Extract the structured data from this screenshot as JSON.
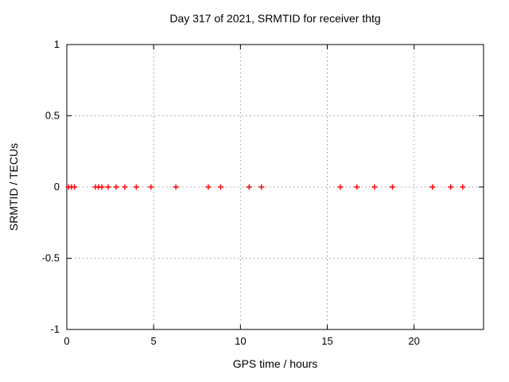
{
  "chart_data": {
    "type": "scatter",
    "title": "Day 317 of 2021, SRMTID for receiver thtg",
    "xlabel": "GPS time / hours",
    "ylabel": "SRMTID / TECUs",
    "xlim": [
      0,
      24
    ],
    "ylim": [
      -1,
      1
    ],
    "x_ticks": [
      0,
      5,
      10,
      15,
      20
    ],
    "x_tick_labels": [
      "0",
      "5",
      "10",
      "15",
      "20"
    ],
    "y_ticks": [
      -1,
      -0.5,
      0,
      0.5,
      1
    ],
    "y_tick_labels": [
      "-1",
      "-0.5",
      "0",
      "0.5",
      "1"
    ],
    "grid": true,
    "legend": "none",
    "colors": {
      "background": "#ffffff",
      "border": "#000000",
      "grid": "#999999",
      "marker": "#ff0000",
      "text": "#000000"
    },
    "marker_shape": "plus",
    "series": [
      {
        "name": "SRMTID",
        "x": [
          0.1,
          0.27,
          0.44,
          1.65,
          1.83,
          2.02,
          2.38,
          2.84,
          3.34,
          4.0,
          4.85,
          6.28,
          8.15,
          8.86,
          10.5,
          11.21,
          15.75,
          16.71,
          17.72,
          18.75,
          21.06,
          22.11,
          22.8
        ],
        "y": [
          0,
          0,
          0,
          0,
          0,
          0,
          0,
          0,
          0,
          0,
          0,
          0,
          0,
          0,
          0,
          0,
          0,
          0,
          0,
          0,
          0,
          0,
          0
        ]
      }
    ]
  }
}
